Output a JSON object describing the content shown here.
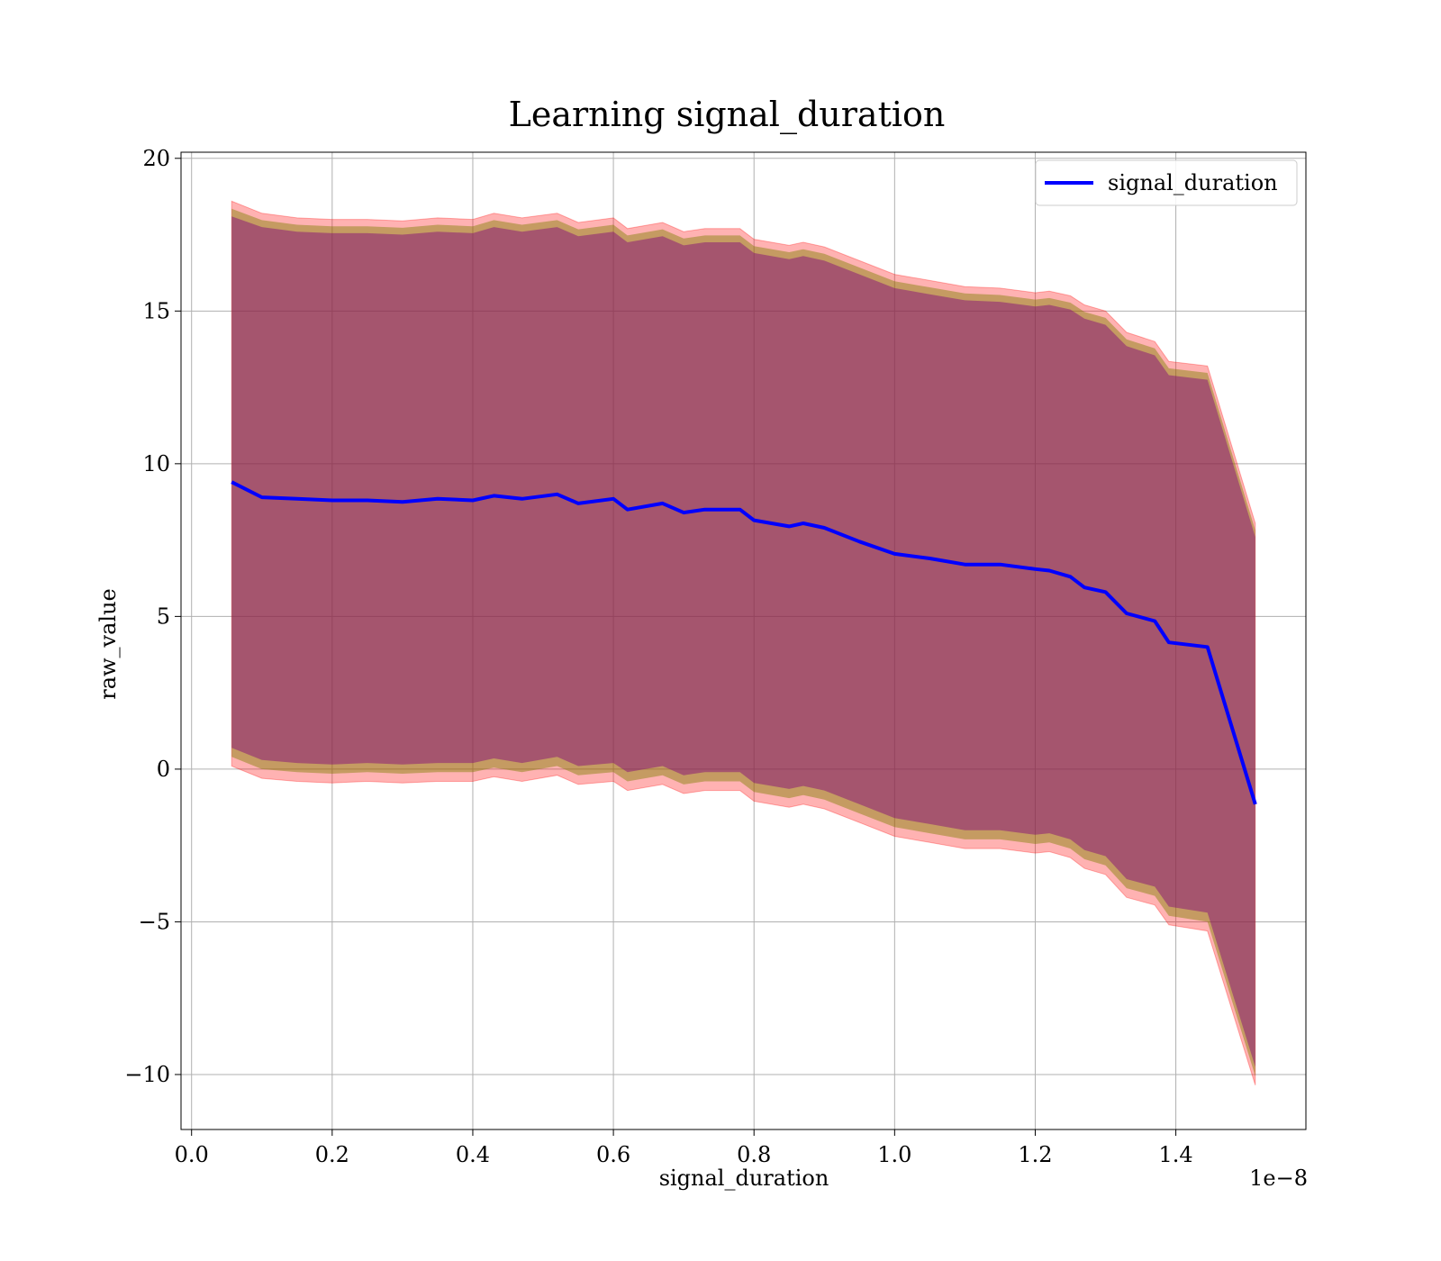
{
  "chart_data": {
    "type": "area",
    "title": "Learning signal_duration",
    "xlabel": "signal_duration",
    "ylabel": "raw_value",
    "x_offset_label": "1e−8",
    "xlim": [
      -0.015,
      1.585
    ],
    "ylim": [
      -11.8,
      20.2
    ],
    "x_ticks": [
      0.0,
      0.2,
      0.4,
      0.6,
      0.8,
      1.0,
      1.2,
      1.4
    ],
    "x_tick_labels": [
      "0.0",
      "0.2",
      "0.4",
      "0.6",
      "0.8",
      "1.0",
      "1.2",
      "1.4"
    ],
    "y_ticks": [
      -10,
      -5,
      0,
      5,
      10,
      15,
      20
    ],
    "y_tick_labels": [
      "−10",
      "−5",
      "0",
      "5",
      "10",
      "15",
      "20"
    ],
    "grid": true,
    "legend": {
      "position": "top-right",
      "entries": [
        "signal_duration"
      ]
    },
    "colors": {
      "line": "#0000ff",
      "outer_band": "#ff0000",
      "middle_band": "#7f7f00",
      "inner_band": "#7f007f",
      "grid": "#b0b0b0"
    },
    "x": [
      0.057,
      0.1,
      0.15,
      0.2,
      0.25,
      0.3,
      0.35,
      0.4,
      0.43,
      0.47,
      0.52,
      0.55,
      0.6,
      0.62,
      0.67,
      0.7,
      0.73,
      0.78,
      0.8,
      0.85,
      0.87,
      0.9,
      0.95,
      1.0,
      1.05,
      1.1,
      1.15,
      1.2,
      1.22,
      1.25,
      1.27,
      1.3,
      1.33,
      1.37,
      1.39,
      1.445,
      1.513
    ],
    "series": [
      {
        "name": "signal_duration",
        "mean": [
          9.4,
          8.9,
          8.85,
          8.8,
          8.8,
          8.75,
          8.85,
          8.8,
          8.95,
          8.85,
          9.0,
          8.7,
          8.85,
          8.5,
          8.7,
          8.4,
          8.5,
          8.5,
          8.15,
          7.95,
          8.05,
          7.9,
          7.45,
          7.05,
          6.9,
          6.7,
          6.7,
          6.55,
          6.5,
          6.3,
          5.95,
          5.8,
          5.1,
          4.85,
          4.15,
          4.0,
          -1.15
        ],
        "outer_upper": [
          18.6,
          18.2,
          18.05,
          18.0,
          18.0,
          17.95,
          18.05,
          18.0,
          18.2,
          18.05,
          18.2,
          17.9,
          18.05,
          17.7,
          17.9,
          17.6,
          17.7,
          17.7,
          17.35,
          17.15,
          17.25,
          17.1,
          16.65,
          16.2,
          16.0,
          15.8,
          15.75,
          15.6,
          15.65,
          15.5,
          15.2,
          15.0,
          14.3,
          14.0,
          13.35,
          13.2,
          8.05
        ],
        "outer_lower": [
          0.1,
          -0.3,
          -0.4,
          -0.45,
          -0.4,
          -0.45,
          -0.4,
          -0.4,
          -0.25,
          -0.4,
          -0.2,
          -0.5,
          -0.4,
          -0.7,
          -0.5,
          -0.8,
          -0.7,
          -0.7,
          -1.05,
          -1.25,
          -1.15,
          -1.3,
          -1.75,
          -2.2,
          -2.4,
          -2.6,
          -2.6,
          -2.75,
          -2.7,
          -2.9,
          -3.25,
          -3.45,
          -4.2,
          -4.45,
          -5.1,
          -5.3,
          -10.35
        ],
        "inner_upper": [
          18.1,
          17.75,
          17.6,
          17.55,
          17.55,
          17.5,
          17.6,
          17.55,
          17.75,
          17.6,
          17.75,
          17.45,
          17.6,
          17.25,
          17.45,
          17.15,
          17.25,
          17.25,
          16.9,
          16.7,
          16.8,
          16.65,
          16.2,
          15.75,
          15.55,
          15.35,
          15.3,
          15.15,
          15.2,
          15.05,
          14.75,
          14.55,
          13.85,
          13.55,
          12.9,
          12.75,
          7.6
        ],
        "inner_lower": [
          0.7,
          0.3,
          0.2,
          0.15,
          0.2,
          0.15,
          0.2,
          0.2,
          0.35,
          0.2,
          0.4,
          0.1,
          0.2,
          -0.1,
          0.1,
          -0.2,
          -0.1,
          -0.1,
          -0.45,
          -0.65,
          -0.55,
          -0.7,
          -1.15,
          -1.6,
          -1.8,
          -2.0,
          -2.0,
          -2.15,
          -2.1,
          -2.3,
          -2.65,
          -2.85,
          -3.6,
          -3.85,
          -4.5,
          -4.7,
          -9.75
        ]
      }
    ]
  }
}
